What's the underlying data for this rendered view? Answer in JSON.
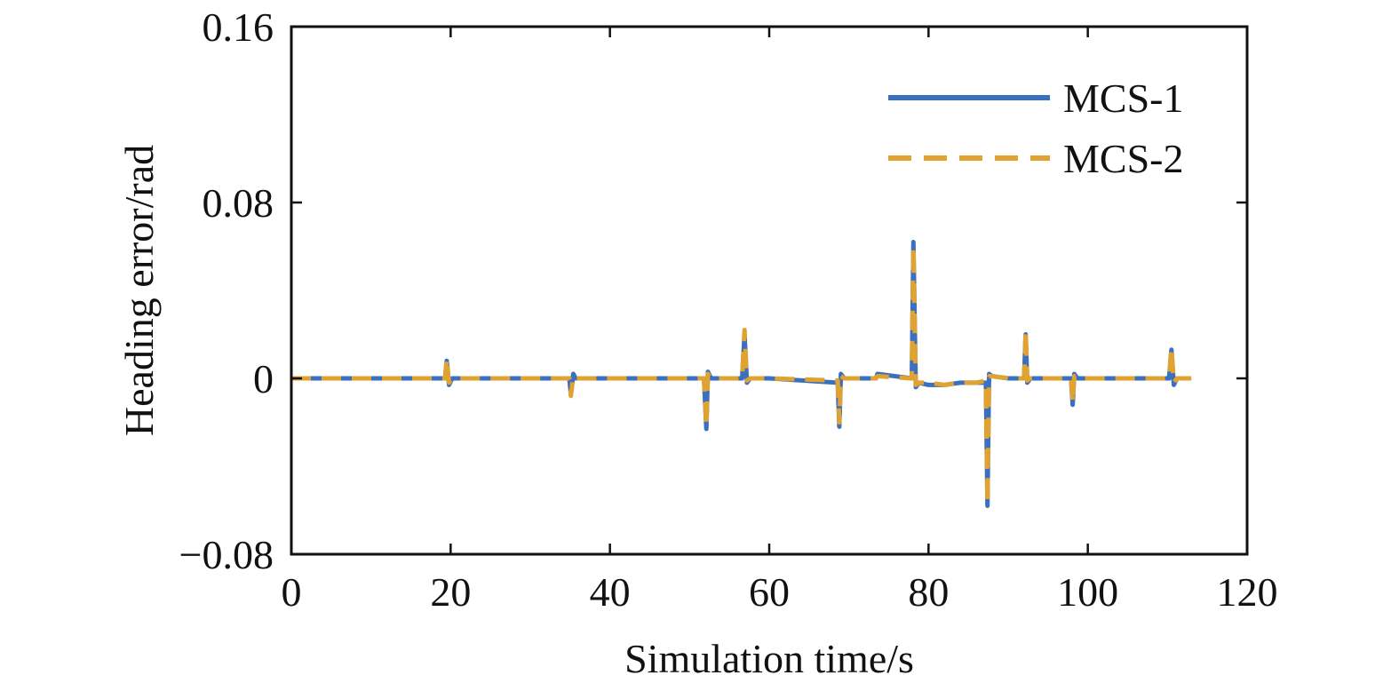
{
  "chart_data": {
    "type": "line",
    "title": "",
    "xlabel": "Simulation time/s",
    "ylabel": "Heading error/rad",
    "xlim": [
      0,
      120
    ],
    "ylim": [
      -0.08,
      0.16
    ],
    "xticks": [
      0,
      20,
      40,
      60,
      80,
      100,
      120
    ],
    "xtick_labels": [
      "0",
      "20",
      "40",
      "60",
      "80",
      "100",
      "120"
    ],
    "yticks": [
      -0.08,
      0,
      0.08,
      0.16
    ],
    "ytick_labels": [
      "−0.08",
      "0",
      "0.08",
      "0.16"
    ],
    "grid": false,
    "legend_position": "top-right",
    "series": [
      {
        "name": "MCS-1",
        "color": "#3b6fbf",
        "style": "solid",
        "x": [
          0,
          19.3,
          19.5,
          19.8,
          20.2,
          34.9,
          35.1,
          35.4,
          35.7,
          51.8,
          52.1,
          52.3,
          52.7,
          56.6,
          56.9,
          57.2,
          57.6,
          60,
          68.6,
          68.8,
          69.0,
          69.4,
          73.4,
          73.6,
          77.9,
          78.1,
          78.4,
          78.8,
          80,
          82,
          84,
          86,
          87.2,
          87.4,
          87.6,
          88.0,
          90,
          92.0,
          92.2,
          92.4,
          92.8,
          97.9,
          98.1,
          98.3,
          98.7,
          110.2,
          110.5,
          110.8,
          111.2,
          112.5
        ],
        "y": [
          0,
          0,
          0.008,
          -0.003,
          0,
          0,
          -0.007,
          0.002,
          0,
          0,
          -0.023,
          0.003,
          0,
          0,
          0.02,
          -0.002,
          0,
          0,
          -0.002,
          -0.022,
          0.002,
          0,
          0,
          0.002,
          0,
          0.062,
          -0.004,
          -0.002,
          -0.003,
          -0.003,
          -0.002,
          -0.002,
          -0.002,
          -0.058,
          0.002,
          0.001,
          0,
          0,
          0.02,
          -0.002,
          0,
          0,
          -0.012,
          0.002,
          0,
          0,
          0.013,
          -0.003,
          0,
          0
        ]
      },
      {
        "name": "MCS-2",
        "color": "#e0a331",
        "style": "dashed",
        "x": [
          0,
          19.3,
          19.5,
          19.8,
          20.2,
          34.9,
          35.1,
          35.4,
          35.7,
          51.8,
          52.1,
          52.3,
          52.7,
          56.6,
          56.9,
          57.2,
          57.6,
          60,
          68.6,
          68.8,
          69.0,
          69.4,
          73.4,
          73.6,
          77.9,
          78.1,
          78.4,
          78.8,
          80,
          82,
          84,
          86,
          87.2,
          87.4,
          87.6,
          88.0,
          90,
          92.0,
          92.2,
          92.4,
          92.8,
          97.9,
          98.1,
          98.3,
          98.7,
          110.2,
          110.5,
          110.8,
          111.2,
          113.0
        ],
        "y": [
          0,
          0,
          0.009,
          -0.002,
          0,
          0,
          -0.008,
          0.001,
          0,
          0,
          -0.022,
          0.002,
          0,
          0,
          0.022,
          -0.001,
          0,
          0,
          -0.001,
          -0.02,
          0.001,
          0,
          0,
          0.001,
          0,
          0.06,
          -0.003,
          -0.002,
          -0.002,
          -0.003,
          -0.002,
          -0.002,
          -0.001,
          -0.057,
          0.001,
          0.001,
          0,
          0,
          0.022,
          -0.001,
          0,
          0,
          -0.011,
          0.001,
          0,
          0,
          0.014,
          -0.002,
          0,
          0
        ]
      }
    ]
  }
}
